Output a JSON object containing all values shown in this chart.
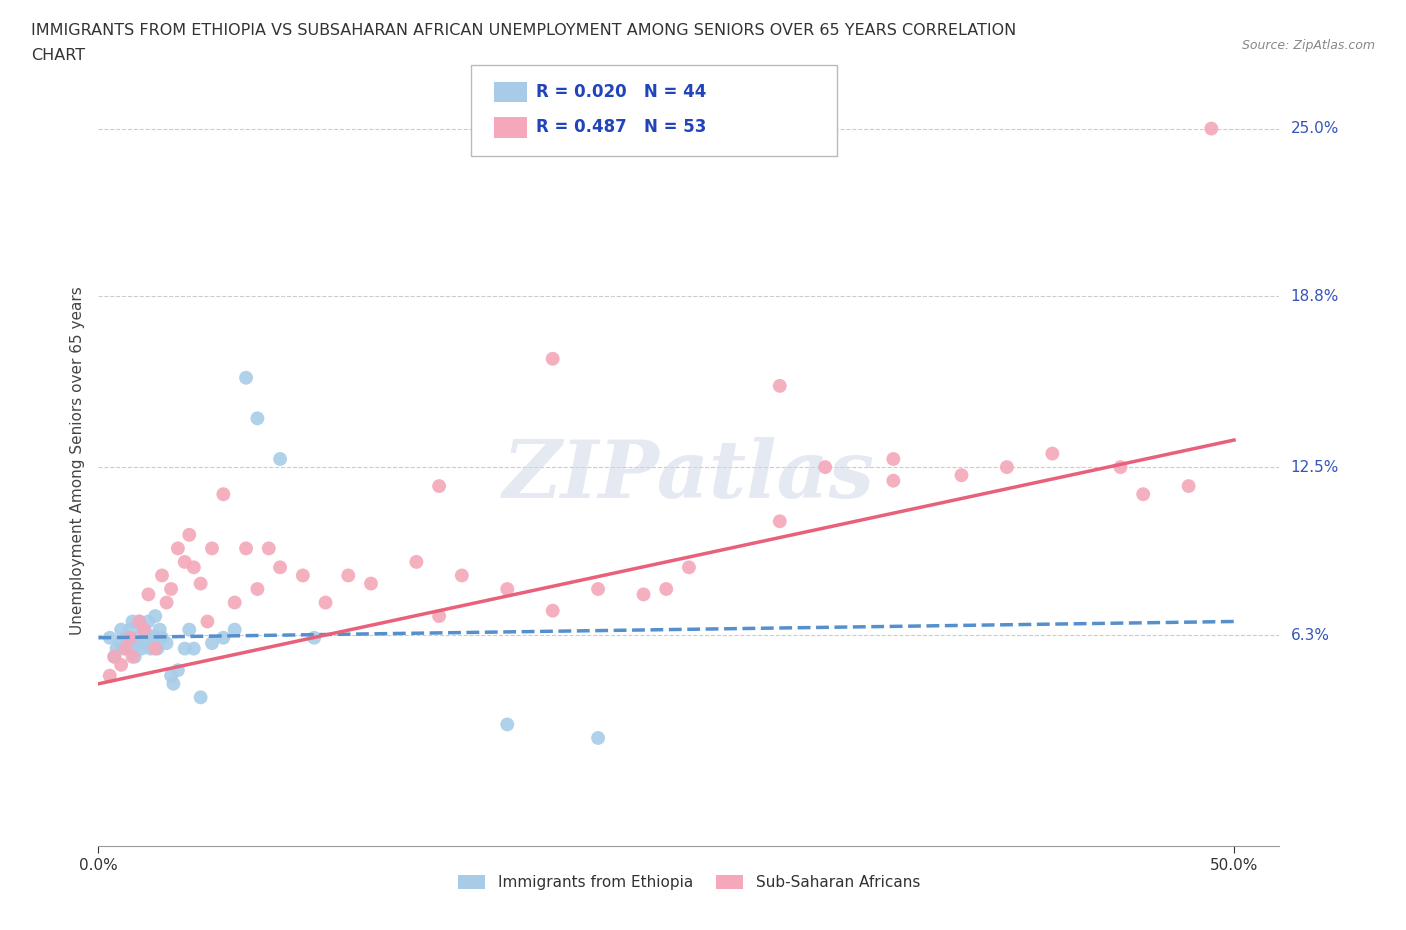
{
  "title_line1": "IMMIGRANTS FROM ETHIOPIA VS SUBSAHARAN AFRICAN UNEMPLOYMENT AMONG SENIORS OVER 65 YEARS CORRELATION",
  "title_line2": "CHART",
  "source": "Source: ZipAtlas.com",
  "ylabel": "Unemployment Among Seniors over 65 years",
  "legend_label1": "Immigrants from Ethiopia",
  "legend_label2": "Sub-Saharan Africans",
  "R1": 0.02,
  "N1": 44,
  "R2": 0.487,
  "N2": 53,
  "color1": "#a8cce8",
  "color2": "#f4a8ba",
  "trendline1_color": "#5590cc",
  "trendline2_color": "#e8607a",
  "xlim": [
    0.0,
    0.52
  ],
  "ylim": [
    -0.015,
    0.27
  ],
  "xticks": [
    0.0,
    0.5
  ],
  "xtick_labels": [
    "0.0%",
    "50.0%"
  ],
  "ytick_values": [
    0.063,
    0.125,
    0.188,
    0.25
  ],
  "ytick_labels": [
    "6.3%",
    "12.5%",
    "18.8%",
    "25.0%"
  ],
  "watermark": "ZIPatlas",
  "trendline1_x0": 0.0,
  "trendline1_y0": 0.062,
  "trendline1_x1": 0.5,
  "trendline1_y1": 0.068,
  "trendline2_x0": 0.0,
  "trendline2_y0": 0.045,
  "trendline2_x1": 0.5,
  "trendline2_y1": 0.135,
  "scatter1_x": [
    0.005,
    0.007,
    0.008,
    0.01,
    0.01,
    0.011,
    0.012,
    0.013,
    0.014,
    0.015,
    0.015,
    0.016,
    0.017,
    0.018,
    0.018,
    0.019,
    0.02,
    0.02,
    0.022,
    0.022,
    0.023,
    0.024,
    0.025,
    0.025,
    0.026,
    0.027,
    0.028,
    0.03,
    0.032,
    0.033,
    0.035,
    0.038,
    0.04,
    0.042,
    0.045,
    0.05,
    0.055,
    0.06,
    0.065,
    0.07,
    0.08,
    0.095,
    0.18,
    0.22
  ],
  "scatter1_y": [
    0.062,
    0.055,
    0.058,
    0.06,
    0.065,
    0.058,
    0.062,
    0.06,
    0.065,
    0.058,
    0.068,
    0.055,
    0.06,
    0.062,
    0.068,
    0.058,
    0.06,
    0.065,
    0.063,
    0.068,
    0.058,
    0.06,
    0.062,
    0.07,
    0.058,
    0.065,
    0.062,
    0.06,
    0.048,
    0.045,
    0.05,
    0.058,
    0.065,
    0.058,
    0.04,
    0.06,
    0.062,
    0.065,
    0.158,
    0.143,
    0.128,
    0.062,
    0.03,
    0.025
  ],
  "scatter2_x": [
    0.005,
    0.007,
    0.01,
    0.012,
    0.014,
    0.015,
    0.018,
    0.02,
    0.022,
    0.025,
    0.028,
    0.03,
    0.032,
    0.035,
    0.038,
    0.04,
    0.042,
    0.045,
    0.048,
    0.05,
    0.055,
    0.06,
    0.065,
    0.07,
    0.075,
    0.08,
    0.09,
    0.1,
    0.11,
    0.12,
    0.14,
    0.15,
    0.16,
    0.18,
    0.2,
    0.22,
    0.24,
    0.26,
    0.3,
    0.32,
    0.35,
    0.38,
    0.4,
    0.42,
    0.45,
    0.46,
    0.48,
    0.49,
    0.3,
    0.2,
    0.25,
    0.15,
    0.35
  ],
  "scatter2_y": [
    0.048,
    0.055,
    0.052,
    0.058,
    0.062,
    0.055,
    0.068,
    0.065,
    0.078,
    0.058,
    0.085,
    0.075,
    0.08,
    0.095,
    0.09,
    0.1,
    0.088,
    0.082,
    0.068,
    0.095,
    0.115,
    0.075,
    0.095,
    0.08,
    0.095,
    0.088,
    0.085,
    0.075,
    0.085,
    0.082,
    0.09,
    0.07,
    0.085,
    0.08,
    0.072,
    0.08,
    0.078,
    0.088,
    0.105,
    0.125,
    0.128,
    0.122,
    0.125,
    0.13,
    0.125,
    0.115,
    0.118,
    0.25,
    0.155,
    0.165,
    0.08,
    0.118,
    0.12
  ]
}
